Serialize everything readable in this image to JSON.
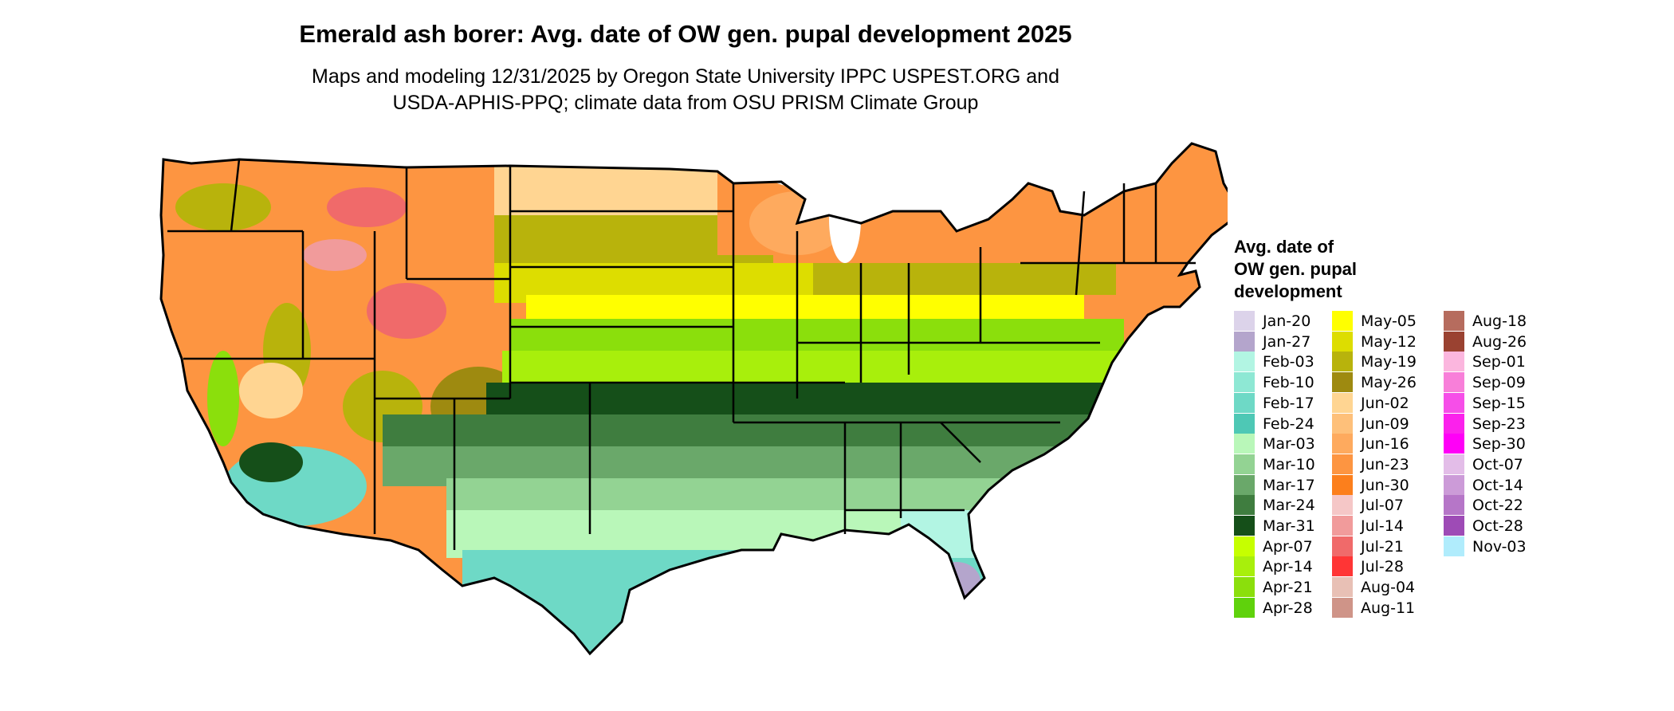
{
  "title": "Emerald ash borer: Avg. date of OW gen. pupal development 2025",
  "subtitle_lines": [
    "Maps and modeling 12/31/2025 by Oregon State University IPPC USPEST.ORG and",
    "USDA-APHIS-PPQ; climate data from OSU PRISM Climate Group"
  ],
  "legend": {
    "title": "Avg. date of\nOW gen. pupal\ndevelopment",
    "columns": [
      [
        {
          "label": "Jan-20",
          "color": "#dcd3ea"
        },
        {
          "label": "Jan-27",
          "color": "#b4a5cc"
        },
        {
          "label": "Feb-03",
          "color": "#b2f5e3"
        },
        {
          "label": "Feb-10",
          "color": "#8ee8d4"
        },
        {
          "label": "Feb-17",
          "color": "#6ed9c6"
        },
        {
          "label": "Feb-24",
          "color": "#4ec8b5"
        },
        {
          "label": "Mar-03",
          "color": "#b9f7b9"
        },
        {
          "label": "Mar-10",
          "color": "#93d393"
        },
        {
          "label": "Mar-17",
          "color": "#6aa86a"
        },
        {
          "label": "Mar-24",
          "color": "#3f7d3f"
        },
        {
          "label": "Mar-31",
          "color": "#154f19"
        },
        {
          "label": "Apr-07",
          "color": "#c6ff00"
        },
        {
          "label": "Apr-14",
          "color": "#a8ef0c"
        },
        {
          "label": "Apr-21",
          "color": "#8bdf0c"
        },
        {
          "label": "Apr-28",
          "color": "#5fd20c"
        }
      ],
      [
        {
          "label": "May-05",
          "color": "#ffff00"
        },
        {
          "label": "May-12",
          "color": "#dddd00"
        },
        {
          "label": "May-19",
          "color": "#b8b30c"
        },
        {
          "label": "May-26",
          "color": "#9e8a10"
        },
        {
          "label": "Jun-02",
          "color": "#ffd592"
        },
        {
          "label": "Jun-09",
          "color": "#fec07a"
        },
        {
          "label": "Jun-16",
          "color": "#feaa5e"
        },
        {
          "label": "Jun-23",
          "color": "#fd9541"
        },
        {
          "label": "Jun-30",
          "color": "#fc7f1c"
        },
        {
          "label": "Jul-07",
          "color": "#f5c7c7"
        },
        {
          "label": "Jul-14",
          "color": "#f19b9b"
        },
        {
          "label": "Jul-21",
          "color": "#f06a6a"
        },
        {
          "label": "Jul-28",
          "color": "#ff3535"
        },
        {
          "label": "Aug-04",
          "color": "#e8c0b5"
        },
        {
          "label": "Aug-11",
          "color": "#cf9488"
        }
      ],
      [
        {
          "label": "Aug-18",
          "color": "#b66c5e"
        },
        {
          "label": "Aug-26",
          "color": "#9a4231"
        },
        {
          "label": "Sep-01",
          "color": "#fbb6de"
        },
        {
          "label": "Sep-09",
          "color": "#f87fd9"
        },
        {
          "label": "Sep-15",
          "color": "#f64ee8"
        },
        {
          "label": "Sep-23",
          "color": "#fb21ec"
        },
        {
          "label": "Sep-30",
          "color": "#ff00f7"
        },
        {
          "label": "Oct-07",
          "color": "#e3bde8"
        },
        {
          "label": "Oct-14",
          "color": "#cc9bd8"
        },
        {
          "label": "Oct-22",
          "color": "#b676c8"
        },
        {
          "label": "Oct-28",
          "color": "#9e4bb6"
        },
        {
          "label": "Nov-03",
          "color": "#b0ecfc"
        }
      ]
    ]
  },
  "map_palette": {
    "jun_orange": "#fd9541",
    "jun_light": "#ffd592",
    "may_olive": "#b8b30c",
    "may_yellow": "#ffff00",
    "apr_green": "#8bdf0c",
    "mar_dark": "#154f19",
    "mar_mid": "#6aa86a",
    "mar_light": "#93d393",
    "feb_teal": "#6ed9c6",
    "feb_light": "#b2f5e3",
    "jan_purple": "#b4a5cc",
    "jul_red": "#f06a6a",
    "border": "#000000"
  }
}
